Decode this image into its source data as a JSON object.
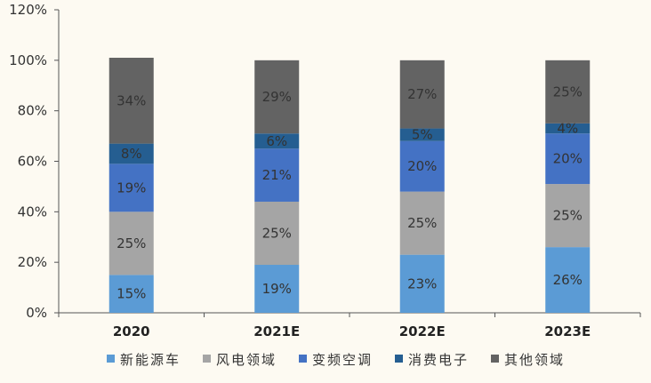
{
  "chart_data": {
    "type": "bar",
    "stacked": true,
    "categories": [
      "2020",
      "2021E",
      "2022E",
      "2023E"
    ],
    "series": [
      {
        "name": "新能源车",
        "color": "#5b9bd5",
        "values": [
          15,
          19,
          23,
          26
        ],
        "labels": [
          "15%",
          "19%",
          "23%",
          "26%"
        ]
      },
      {
        "name": "风电领域",
        "color": "#a5a5a5",
        "values": [
          25,
          25,
          25,
          25
        ],
        "labels": [
          "25%",
          "25%",
          "25%",
          "25%"
        ]
      },
      {
        "name": "变频空调",
        "color": "#4472c4",
        "values": [
          19,
          21,
          20,
          20
        ],
        "labels": [
          "19%",
          "21%",
          "20%",
          "20%"
        ]
      },
      {
        "name": "消费电子",
        "color": "#255e91",
        "values": [
          8,
          6,
          5,
          4
        ],
        "labels": [
          "8%",
          "6%",
          "5%",
          "4%"
        ]
      },
      {
        "name": "其他领域",
        "color": "#636363",
        "values": [
          34,
          29,
          27,
          25
        ],
        "labels": [
          "34%",
          "29%",
          "27%",
          "25%"
        ]
      }
    ],
    "yticks": [
      "0%",
      "20%",
      "40%",
      "60%",
      "80%",
      "100%",
      "120%"
    ],
    "ylim": [
      0,
      120
    ],
    "grid": false,
    "legend_position": "bottom"
  }
}
